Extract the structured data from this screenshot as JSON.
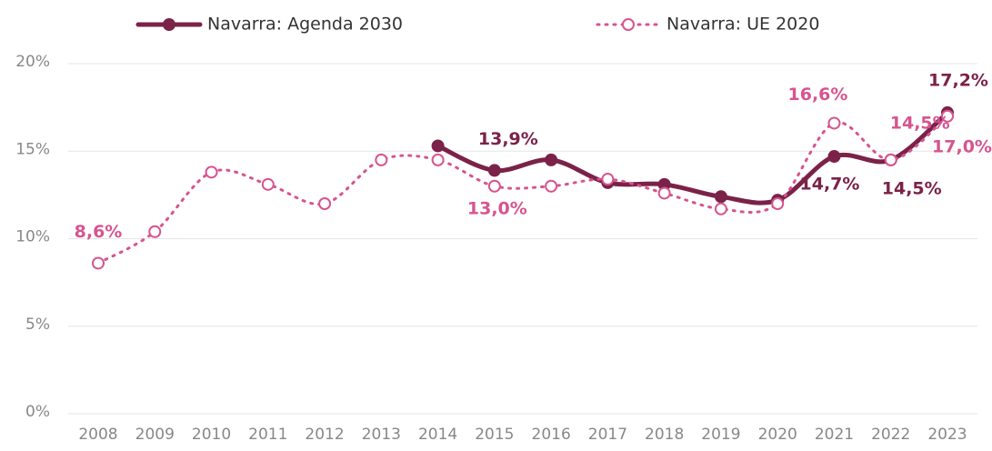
{
  "chart_data": {
    "type": "line",
    "categories": [
      "2008",
      "2009",
      "2010",
      "2011",
      "2012",
      "2013",
      "2014",
      "2015",
      "2016",
      "2017",
      "2018",
      "2019",
      "2020",
      "2021",
      "2022",
      "2023"
    ],
    "series": [
      {
        "name": "Navarra: Agenda 2030",
        "color": "#7b2249",
        "values": [
          null,
          null,
          null,
          null,
          null,
          null,
          15.3,
          13.9,
          14.5,
          13.2,
          13.1,
          12.4,
          12.2,
          14.7,
          14.5,
          17.2
        ],
        "value_labels": [
          null,
          null,
          null,
          null,
          null,
          null,
          null,
          "13,9%",
          null,
          null,
          null,
          null,
          null,
          "14,7%",
          "14,5%",
          "17,2%"
        ]
      },
      {
        "name": "Navarra: UE 2020",
        "color": "#d6558f",
        "values": [
          8.6,
          10.4,
          13.8,
          13.1,
          12.0,
          14.5,
          14.5,
          13.0,
          13.0,
          13.4,
          12.6,
          11.7,
          12.0,
          16.6,
          14.5,
          17.0
        ],
        "value_labels": [
          "8,6%",
          null,
          null,
          null,
          null,
          null,
          null,
          "13,0%",
          null,
          null,
          null,
          null,
          null,
          "16,6%",
          "14,5%",
          "17,0%"
        ]
      }
    ],
    "ylim": [
      0,
      20
    ],
    "yticks": [
      {
        "value": 0,
        "label": "0%"
      },
      {
        "value": 5,
        "label": "5%"
      },
      {
        "value": 10,
        "label": "10%"
      },
      {
        "value": 15,
        "label": "15%"
      },
      {
        "value": 20,
        "label": "20%"
      }
    ],
    "grid": true
  }
}
